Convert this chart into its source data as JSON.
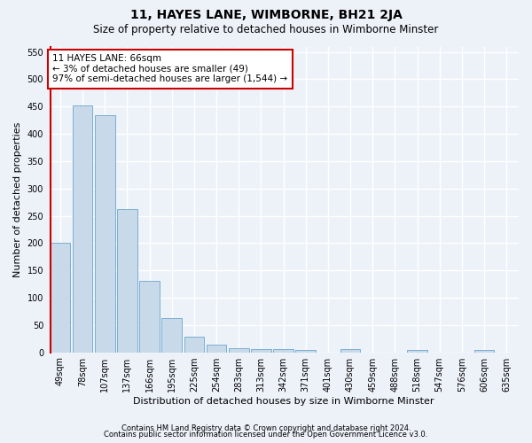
{
  "title": "11, HAYES LANE, WIMBORNE, BH21 2JA",
  "subtitle": "Size of property relative to detached houses in Wimborne Minster",
  "xlabel": "Distribution of detached houses by size in Wimborne Minster",
  "ylabel": "Number of detached properties",
  "footer_line1": "Contains HM Land Registry data © Crown copyright and database right 2024.",
  "footer_line2": "Contains public sector information licensed under the Open Government Licence v3.0.",
  "bar_labels": [
    "49sqm",
    "78sqm",
    "107sqm",
    "137sqm",
    "166sqm",
    "195sqm",
    "225sqm",
    "254sqm",
    "283sqm",
    "313sqm",
    "342sqm",
    "371sqm",
    "401sqm",
    "430sqm",
    "459sqm",
    "488sqm",
    "518sqm",
    "547sqm",
    "576sqm",
    "606sqm",
    "635sqm"
  ],
  "bar_values": [
    200,
    452,
    435,
    263,
    130,
    62,
    29,
    14,
    8,
    6,
    6,
    5,
    0,
    6,
    0,
    0,
    5,
    0,
    0,
    5,
    0
  ],
  "bar_color": "#c8d9ea",
  "bar_edge_color": "#7aafd4",
  "ylim": [
    0,
    560
  ],
  "yticks": [
    0,
    50,
    100,
    150,
    200,
    250,
    300,
    350,
    400,
    450,
    500,
    550
  ],
  "annotation_text": "11 HAYES LANE: 66sqm\n← 3% of detached houses are smaller (49)\n97% of semi-detached houses are larger (1,544) →",
  "annotation_box_color": "#ffffff",
  "annotation_edge_color": "#cc0000",
  "vline_color": "#cc0000",
  "bg_color": "#edf2f9",
  "grid_color": "#ffffff",
  "title_fontsize": 10,
  "subtitle_fontsize": 8.5,
  "axis_label_fontsize": 8,
  "tick_fontsize": 7,
  "annotation_fontsize": 7.5,
  "footer_fontsize": 6
}
